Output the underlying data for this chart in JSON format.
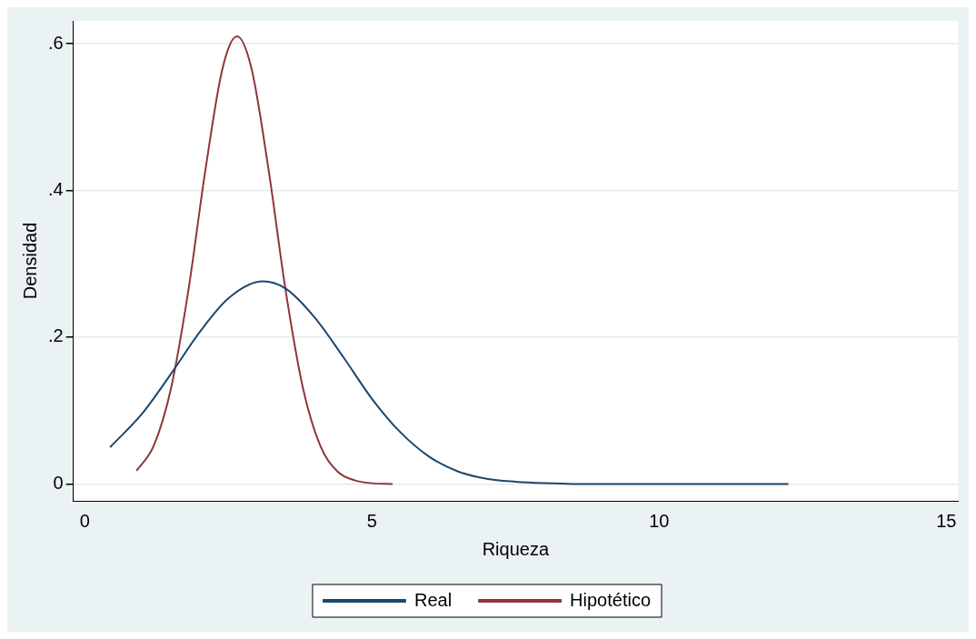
{
  "chart_data": {
    "type": "line",
    "xlabel": "Riqueza",
    "ylabel": "Densidad",
    "xlim": [
      -0.2,
      15.2
    ],
    "ylim": [
      -0.023,
      0.631
    ],
    "xticks": [
      0,
      5,
      10,
      15
    ],
    "yticks": [
      0,
      {
        "value": 0.2,
        "label": ".2"
      },
      {
        "value": 0.4,
        "label": ".4"
      },
      {
        "value": 0.6,
        "label": ".6"
      }
    ],
    "grid": "y",
    "legend": "bottom",
    "marker": "none",
    "line_style": "solid",
    "series": [
      {
        "name": "Real",
        "color": "#1a476f",
        "x": [
          0.44,
          1,
          1.5,
          2,
          2.5,
          3.1,
          3.5,
          4,
          4.5,
          5,
          5.5,
          6,
          6.5,
          7,
          7.5,
          8,
          8.5,
          10,
          12.25
        ],
        "values": [
          0.05,
          0.096,
          0.15,
          0.207,
          0.253,
          0.276,
          0.266,
          0.227,
          0.173,
          0.116,
          0.07,
          0.037,
          0.017,
          0.007,
          0.003,
          0.001,
          0,
          0,
          0
        ]
      },
      {
        "name": "Hipotético",
        "color": "#90353b",
        "x": [
          0.9,
          1.2,
          1.5,
          1.8,
          2.1,
          2.4,
          2.65,
          2.9,
          3.2,
          3.5,
          3.8,
          4.1,
          4.4,
          4.7,
          5,
          5.36
        ],
        "values": [
          0.018,
          0.052,
          0.13,
          0.262,
          0.428,
          0.567,
          0.61,
          0.567,
          0.428,
          0.262,
          0.13,
          0.052,
          0.017,
          0.005,
          0.001,
          0
        ]
      }
    ]
  }
}
